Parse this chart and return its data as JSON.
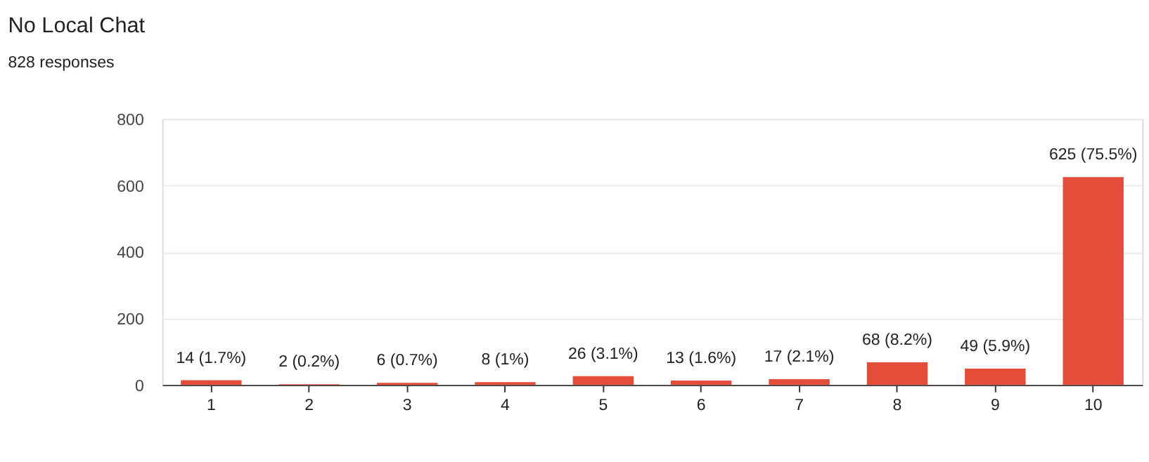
{
  "chart_data": {
    "type": "bar",
    "title": "No Local Chat",
    "subtitle": "828 responses",
    "categories": [
      "1",
      "2",
      "3",
      "4",
      "5",
      "6",
      "7",
      "8",
      "9",
      "10"
    ],
    "values": [
      14,
      2,
      6,
      8,
      26,
      13,
      17,
      68,
      49,
      625
    ],
    "value_labels": [
      "14 (1.7%)",
      "2 (0.2%)",
      "6 (0.7%)",
      "8 (1%)",
      "26 (3.1%)",
      "13 (1.6%)",
      "17 (2.1%)",
      "68 (8.2%)",
      "49 (5.9%)",
      "625 (75.5%)"
    ],
    "color": "#e34d3a",
    "ylim": [
      0,
      800
    ],
    "yticks": [
      0,
      200,
      400,
      600,
      800
    ],
    "grid": "y"
  }
}
